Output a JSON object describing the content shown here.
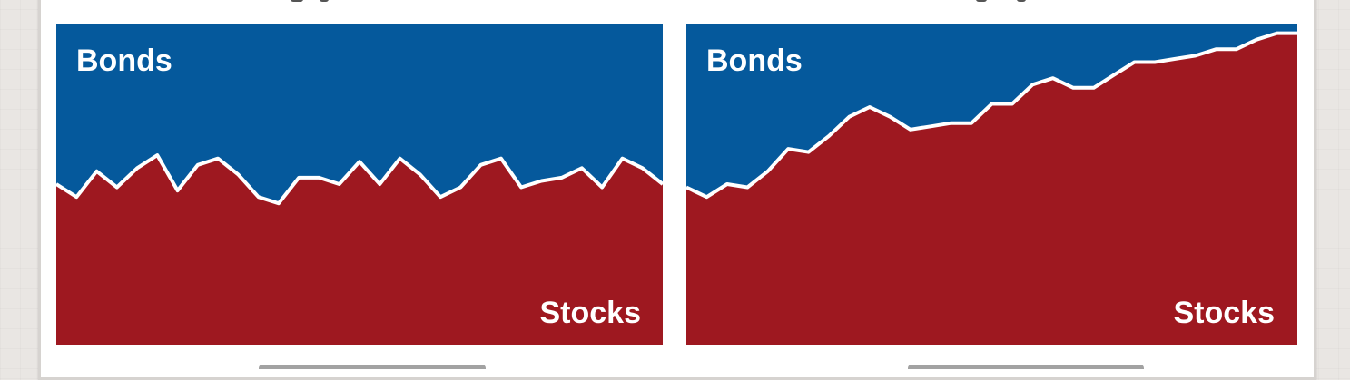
{
  "colors": {
    "bonds": "#05599c",
    "stocks": "#9e1820",
    "boundary": "#ffffff"
  },
  "chart_data": [
    {
      "type": "area",
      "title": "",
      "xlabel": "",
      "ylabel": "",
      "ylim": [
        0,
        100
      ],
      "grid": false,
      "area_labels": {
        "top": "Bonds",
        "bottom": "Stocks"
      },
      "series": [
        {
          "name": "Stocks",
          "values": [
            50,
            46,
            54,
            49,
            55,
            59,
            48,
            56,
            58,
            53,
            46,
            44,
            52,
            52,
            50,
            57,
            50,
            58,
            53,
            46,
            49,
            56,
            58,
            49,
            51,
            52,
            55,
            49,
            58,
            55,
            50
          ]
        },
        {
          "name": "Bonds",
          "values": [
            50,
            54,
            46,
            51,
            45,
            41,
            52,
            44,
            42,
            47,
            54,
            56,
            48,
            48,
            50,
            43,
            50,
            42,
            47,
            54,
            51,
            44,
            42,
            51,
            49,
            48,
            45,
            51,
            42,
            45,
            50
          ]
        }
      ]
    },
    {
      "type": "area",
      "title": "",
      "xlabel": "",
      "ylabel": "",
      "ylim": [
        0,
        100
      ],
      "grid": false,
      "area_labels": {
        "top": "Bonds",
        "bottom": "Stocks"
      },
      "series": [
        {
          "name": "Stocks",
          "values": [
            49,
            46,
            50,
            49,
            54,
            61,
            60,
            65,
            71,
            74,
            71,
            67,
            68,
            69,
            69,
            75,
            75,
            81,
            83,
            80,
            80,
            84,
            88,
            88,
            89,
            90,
            92,
            92,
            95,
            97,
            97
          ]
        },
        {
          "name": "Bonds",
          "values": [
            51,
            54,
            50,
            51,
            46,
            39,
            40,
            35,
            29,
            26,
            29,
            33,
            32,
            31,
            31,
            25,
            25,
            19,
            17,
            20,
            20,
            16,
            12,
            12,
            11,
            10,
            8,
            8,
            5,
            3,
            3
          ]
        }
      ]
    }
  ]
}
